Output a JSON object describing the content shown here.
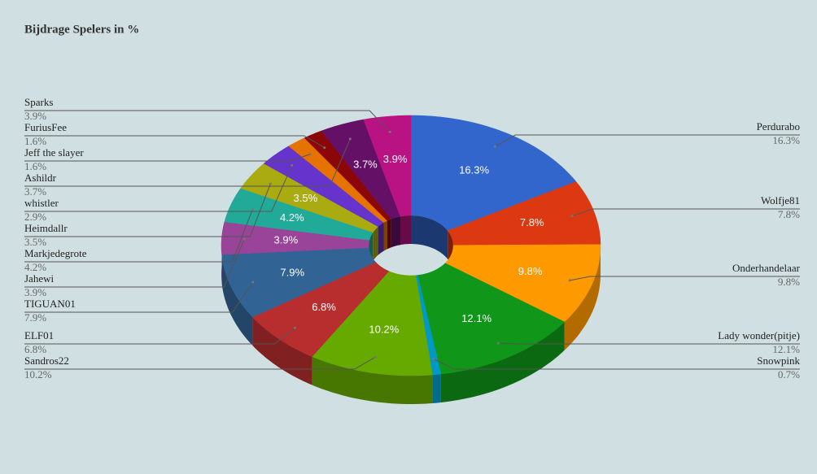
{
  "chart_data": {
    "type": "donut3d",
    "title": "Bijdrage Spelers in %",
    "categories": [
      "Perdurabo",
      "Wolfje81",
      "Onderhandelaar",
      "Lady wonder(pitje)",
      "Snowpink",
      "Sandros22",
      "ELF01",
      "TIGUAN01",
      "Jahewi",
      "Markjedegrote",
      "Heimdallr",
      "whistler",
      "Jeff the slayer",
      "FuriusFee",
      "Ashildr",
      "Sparks"
    ],
    "values": [
      16.3,
      7.8,
      9.8,
      12.1,
      0.7,
      10.2,
      6.8,
      7.9,
      3.9,
      4.2,
      3.5,
      2.9,
      1.6,
      1.6,
      3.7,
      3.9
    ],
    "value_labels": [
      "16.3%",
      "7.8%",
      "9.8%",
      "12.1%",
      "0.7%",
      "10.2%",
      "6.8%",
      "7.9%",
      "3.9%",
      "4.2%",
      "3.5%",
      "2.9%",
      "1.6%",
      "1.6%",
      "3.7%",
      "3.9%"
    ],
    "colors": [
      "#3366cc",
      "#dc3912",
      "#ff9900",
      "#109618",
      "#0099c6",
      "#66aa00",
      "#b82e2e",
      "#316395",
      "#994499",
      "#22aa99",
      "#aaaa11",
      "#6633cc",
      "#e67300",
      "#8b0707",
      "#651067",
      "#b91383"
    ]
  }
}
